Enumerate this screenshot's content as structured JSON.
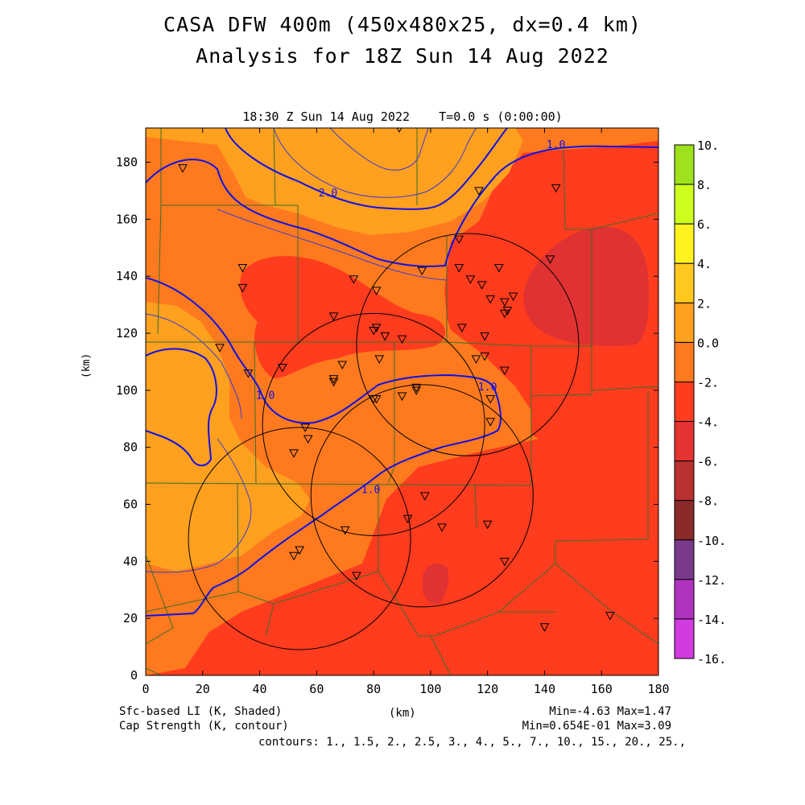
{
  "figure": {
    "title_line1": "CASA DFW 400m (450x480x25, dx=0.4 km)",
    "title_line2": "Analysis for 18Z Sun 14 Aug 2022",
    "subtitle": "18:30 Z Sun 14 Aug 2022    T=0.0 s (0:00:00)"
  },
  "footer": {
    "shaded_label": "Sfc-based LI (K, Shaded)",
    "contour_label": "Cap Strength (K, contour)",
    "xunit": "(km)",
    "shaded_range": "Min=-4.63 Max=1.47",
    "contour_range": "Min=0.654E-01 Max=3.09",
    "contours_list": "contours: 1., 1.5, 2., 2.5, 3., 4., 5., 7., 10., 15., 20., 25.,"
  },
  "colorbar": {
    "labels": [
      "10.",
      "8.",
      "6.",
      "4.",
      "2.",
      "0.0",
      "-2.",
      "-4.",
      "-6.",
      "-8.",
      "-10.",
      "-12.",
      "-14.",
      "-16."
    ],
    "colors_top_to_bottom": [
      "#9ee21e",
      "#ccff1e",
      "#fff21e",
      "#ffc81e",
      "#ffa01e",
      "#ff7a1e",
      "#ff3c1e",
      "#e53232",
      "#bb3030",
      "#8a2a2a",
      "#7a3a8a",
      "#b033c0",
      "#d23be0"
    ]
  },
  "chart_data": {
    "type": "heatmap",
    "title": "CASA DFW 400m (450x480x25, dx=0.4 km)",
    "subtitle": "Analysis for 18Z Sun 14 Aug 2022",
    "xlabel": "(km)",
    "ylabel": "(km)",
    "xlim": [
      0,
      180
    ],
    "ylim": [
      0,
      192
    ],
    "xticks": [
      0,
      20,
      40,
      60,
      80,
      100,
      120,
      140,
      160,
      180
    ],
    "yticks": [
      0,
      20,
      40,
      60,
      80,
      100,
      120,
      140,
      160,
      180
    ],
    "shaded_field": "Sfc-based LI (K)",
    "shaded_min": -4.63,
    "shaded_max": 1.47,
    "contour_field": "Cap Strength (K)",
    "contour_min": 0.0654,
    "contour_max": 3.09,
    "contour_levels": [
      1.0,
      1.5,
      2.0,
      2.5,
      3.0,
      4.0,
      5.0,
      7.0,
      10.0,
      15.0,
      20.0,
      25.0
    ],
    "contour_labels": [
      {
        "text": "1.0",
        "x": 144,
        "y": 186
      },
      {
        "text": "2.0",
        "x": 64,
        "y": 169
      },
      {
        "text": "1.0",
        "x": 42,
        "y": 98
      },
      {
        "text": "1.0",
        "x": 120,
        "y": 101
      },
      {
        "text": "1.0",
        "x": 79,
        "y": 65
      }
    ],
    "radar_circles": [
      {
        "cx": 113,
        "cy": 116,
        "r": 39
      },
      {
        "cx": 80,
        "cy": 88,
        "r": 39
      },
      {
        "cx": 97,
        "cy": 63,
        "r": 39
      },
      {
        "cx": 54,
        "cy": 48,
        "r": 39
      }
    ],
    "stations": [
      [
        13,
        178
      ],
      [
        89,
        192
      ],
      [
        117,
        170
      ],
      [
        144,
        171
      ],
      [
        110,
        153
      ],
      [
        34,
        143
      ],
      [
        34,
        136
      ],
      [
        73,
        139
      ],
      [
        81,
        135
      ],
      [
        97,
        142
      ],
      [
        110,
        143
      ],
      [
        114,
        139
      ],
      [
        118,
        137
      ],
      [
        124,
        143
      ],
      [
        121,
        132
      ],
      [
        126,
        131
      ],
      [
        127,
        128
      ],
      [
        126,
        127
      ],
      [
        129,
        133
      ],
      [
        142,
        146
      ],
      [
        66,
        126
      ],
      [
        81,
        122
      ],
      [
        80,
        121
      ],
      [
        84,
        119
      ],
      [
        90,
        118
      ],
      [
        111,
        122
      ],
      [
        119,
        119
      ],
      [
        26,
        115
      ],
      [
        36,
        106
      ],
      [
        48,
        108
      ],
      [
        69,
        109
      ],
      [
        82,
        111
      ],
      [
        116,
        111
      ],
      [
        119,
        112
      ],
      [
        126,
        107
      ],
      [
        66,
        104
      ],
      [
        66,
        103
      ],
      [
        80,
        97
      ],
      [
        81,
        97
      ],
      [
        90,
        98
      ],
      [
        95,
        100
      ],
      [
        95,
        101
      ],
      [
        121,
        97
      ],
      [
        121,
        89
      ],
      [
        56,
        87
      ],
      [
        57,
        83
      ],
      [
        52,
        78
      ],
      [
        98,
        63
      ],
      [
        70,
        51
      ],
      [
        92,
        55
      ],
      [
        104,
        52
      ],
      [
        120,
        53
      ],
      [
        54,
        44
      ],
      [
        52,
        42
      ],
      [
        74,
        35
      ],
      [
        126,
        40
      ],
      [
        140,
        17
      ],
      [
        163,
        21
      ]
    ]
  }
}
